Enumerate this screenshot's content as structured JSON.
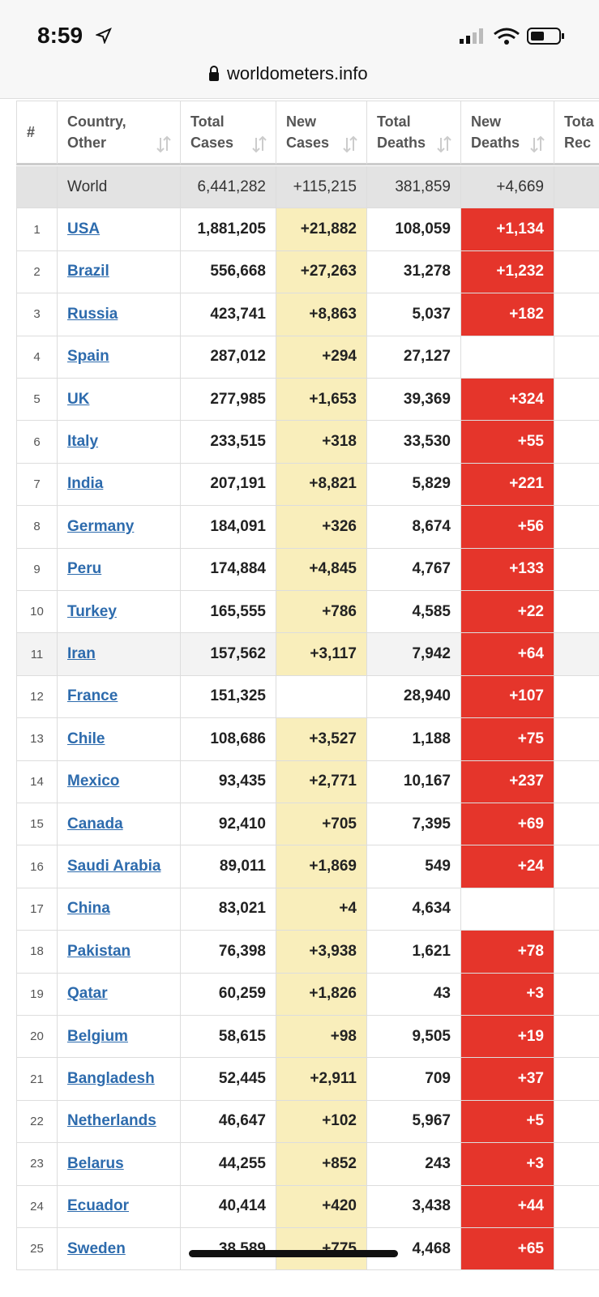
{
  "status_bar": {
    "time": "8:59",
    "url": "worldometers.info"
  },
  "table": {
    "columns": [
      [
        "#"
      ],
      [
        "Country,",
        "Other"
      ],
      [
        "Total",
        "Cases"
      ],
      [
        "New",
        "Cases"
      ],
      [
        "Total",
        "Deaths"
      ],
      [
        "New",
        "Deaths"
      ],
      [
        "Tota",
        "Rec"
      ]
    ],
    "world": [
      "World",
      "6,441,282",
      "+115,215",
      "381,859",
      "+4,669"
    ],
    "rows": [
      [
        "1",
        "USA",
        "1,881,205",
        "+21,882",
        "108,059",
        "+1,134"
      ],
      [
        "2",
        "Brazil",
        "556,668",
        "+27,263",
        "31,278",
        "+1,232"
      ],
      [
        "3",
        "Russia",
        "423,741",
        "+8,863",
        "5,037",
        "+182"
      ],
      [
        "4",
        "Spain",
        "287,012",
        "+294",
        "27,127",
        null
      ],
      [
        "5",
        "UK",
        "277,985",
        "+1,653",
        "39,369",
        "+324"
      ],
      [
        "6",
        "Italy",
        "233,515",
        "+318",
        "33,530",
        "+55"
      ],
      [
        "7",
        "India",
        "207,191",
        "+8,821",
        "5,829",
        "+221"
      ],
      [
        "8",
        "Germany",
        "184,091",
        "+326",
        "8,674",
        "+56"
      ],
      [
        "9",
        "Peru",
        "174,884",
        "+4,845",
        "4,767",
        "+133"
      ],
      [
        "10",
        "Turkey",
        "165,555",
        "+786",
        "4,585",
        "+22"
      ],
      [
        "11",
        "Iran",
        "157,562",
        "+3,117",
        "7,942",
        "+64"
      ],
      [
        "12",
        "France",
        "151,325",
        null,
        "28,940",
        "+107"
      ],
      [
        "13",
        "Chile",
        "108,686",
        "+3,527",
        "1,188",
        "+75"
      ],
      [
        "14",
        "Mexico",
        "93,435",
        "+2,771",
        "10,167",
        "+237"
      ],
      [
        "15",
        "Canada",
        "92,410",
        "+705",
        "7,395",
        "+69"
      ],
      [
        "16",
        "Saudi Arabia",
        "89,011",
        "+1,869",
        "549",
        "+24"
      ],
      [
        "17",
        "China",
        "83,021",
        "+4",
        "4,634",
        null
      ],
      [
        "18",
        "Pakistan",
        "76,398",
        "+3,938",
        "1,621",
        "+78"
      ],
      [
        "19",
        "Qatar",
        "60,259",
        "+1,826",
        "43",
        "+3"
      ],
      [
        "20",
        "Belgium",
        "58,615",
        "+98",
        "9,505",
        "+19"
      ],
      [
        "21",
        "Bangladesh",
        "52,445",
        "+2,911",
        "709",
        "+37"
      ],
      [
        "22",
        "Netherlands",
        "46,647",
        "+102",
        "5,967",
        "+5"
      ],
      [
        "23",
        "Belarus",
        "44,255",
        "+852",
        "243",
        "+3"
      ],
      [
        "24",
        "Ecuador",
        "40,414",
        "+420",
        "3,438",
        "+44"
      ],
      [
        "25",
        "Sweden",
        "38,589",
        "+775",
        "4,468",
        "+65"
      ]
    ]
  }
}
